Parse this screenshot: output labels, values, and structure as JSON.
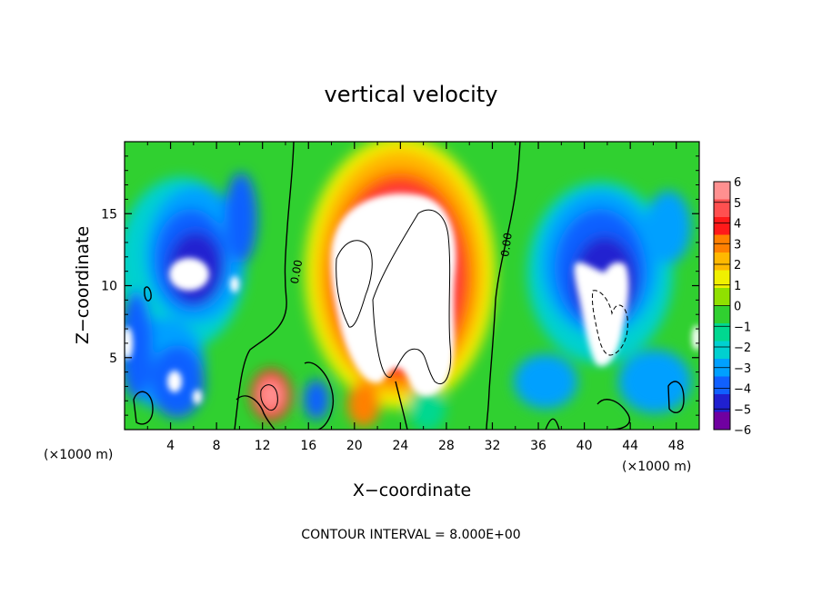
{
  "chart_data": {
    "type": "contour",
    "title": "vertical velocity",
    "xlabel": "X−coordinate",
    "ylabel": "Z−coordinate",
    "x_units_left": "(×1000 m)",
    "x_units_right": "(×1000 m)",
    "footer": "CONTOUR INTERVAL = 8.000E+00",
    "xlim": [
      0,
      50
    ],
    "ylim": [
      0,
      20
    ],
    "x_ticks": [
      4,
      8,
      12,
      16,
      20,
      24,
      28,
      32,
      36,
      40,
      44,
      48
    ],
    "x_tick_labels": [
      "4",
      "8",
      "12",
      "16",
      "20",
      "24",
      "28",
      "32",
      "36",
      "40",
      "44",
      "48"
    ],
    "y_ticks": [
      5,
      10,
      15
    ],
    "y_tick_labels": [
      "5",
      "10",
      "15"
    ],
    "colorbar": {
      "levels": [
        6,
        5,
        4,
        3,
        2,
        1,
        0,
        -1,
        -2,
        -3,
        -4,
        -5,
        -6
      ],
      "labels": [
        "6",
        "5",
        "4",
        "3",
        "2",
        "1",
        "0",
        "−1",
        "−2",
        "−3",
        "−4",
        "−5",
        "−6"
      ],
      "colors": [
        "#ff9090",
        "#ff5050",
        "#ff1a1a",
        "#ff8000",
        "#ffb800",
        "#f0f000",
        "#90e000",
        "#30d030",
        "#00d890",
        "#00d0d0",
        "#00a0ff",
        "#1060ff",
        "#2020d0",
        "#7000a0"
      ]
    },
    "contour_labels": [
      {
        "text": "0.00",
        "x": 11.8,
        "y": 10.4,
        "rotate": -80
      },
      {
        "text": "0.00",
        "x": 33.7,
        "y": 13.0,
        "rotate": -82
      }
    ],
    "features": [
      {
        "kind": "updraft_core",
        "x": 24.5,
        "y": 10,
        "value": "> 6"
      },
      {
        "kind": "downdraft_core",
        "x": 5.5,
        "y": 10.5,
        "value": "< -6"
      },
      {
        "kind": "downdraft_core",
        "x": 41.5,
        "y": 9,
        "value": "< -6"
      }
    ]
  }
}
